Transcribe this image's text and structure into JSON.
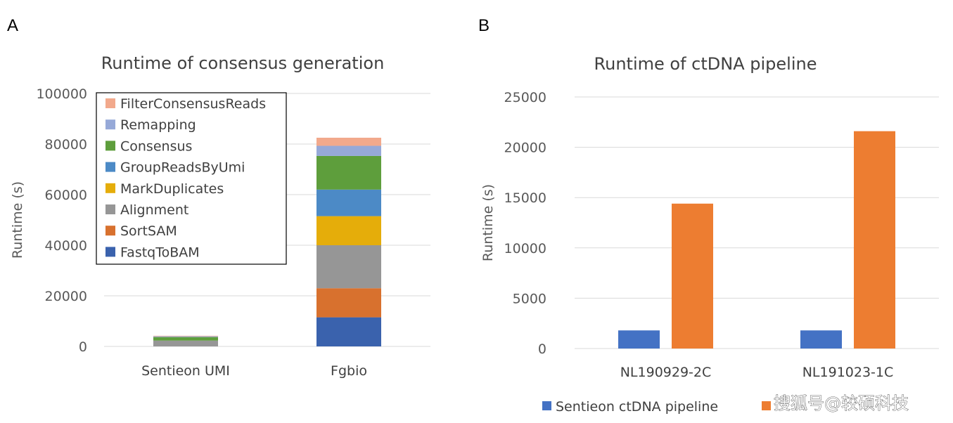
{
  "watermark": "搜狐号@较硕科技",
  "chart_data": [
    {
      "panel": "A",
      "type": "bar",
      "stacked": true,
      "title": "Runtime of consensus generation",
      "ylabel": "Runtime (s)",
      "xlabel": "",
      "ylim": [
        0,
        100000
      ],
      "yticks": [
        "0",
        "20000",
        "40000",
        "60000",
        "80000",
        "100000"
      ],
      "grid": true,
      "legend_position": "top-left-inset",
      "categories": [
        "Sentieon UMI",
        "Fgbio"
      ],
      "series": [
        {
          "name": "FastqToBAM",
          "color": "#3a62ad",
          "values": [
            0,
            11500
          ]
        },
        {
          "name": "SortSAM",
          "color": "#d8712e",
          "values": [
            0,
            11500
          ]
        },
        {
          "name": "Alignment",
          "color": "#969696",
          "values": [
            2300,
            17000
          ]
        },
        {
          "name": "MarkDuplicates",
          "color": "#e5ad0a",
          "values": [
            0,
            11500
          ]
        },
        {
          "name": "GroupReadsByUmi",
          "color": "#4c8ac6",
          "values": [
            0,
            10500
          ]
        },
        {
          "name": "Consensus",
          "color": "#5e9e3c",
          "values": [
            1400,
            13300
          ]
        },
        {
          "name": "Remapping",
          "color": "#96a9d8",
          "values": [
            300,
            4000
          ]
        },
        {
          "name": "FilterConsensusReads",
          "color": "#f2a98c",
          "values": [
            200,
            3200
          ]
        }
      ]
    },
    {
      "panel": "B",
      "type": "bar",
      "stacked": false,
      "title": "Runtime of ctDNA pipeline",
      "ylabel": "Runtime (s)",
      "xlabel": "",
      "ylim": [
        0,
        25000
      ],
      "yticks": [
        "0",
        "5000",
        "10000",
        "15000",
        "20000",
        "25000"
      ],
      "grid": true,
      "legend_position": "bottom",
      "categories": [
        "NL190929-2C",
        "NL191023-1C"
      ],
      "series": [
        {
          "name": "Sentieon ctDNA pipeline",
          "color": "#4472c4",
          "values": [
            1800,
            1800
          ]
        },
        {
          "name": "",
          "color": "#ed7d31",
          "values": [
            14400,
            21600
          ]
        }
      ]
    }
  ]
}
